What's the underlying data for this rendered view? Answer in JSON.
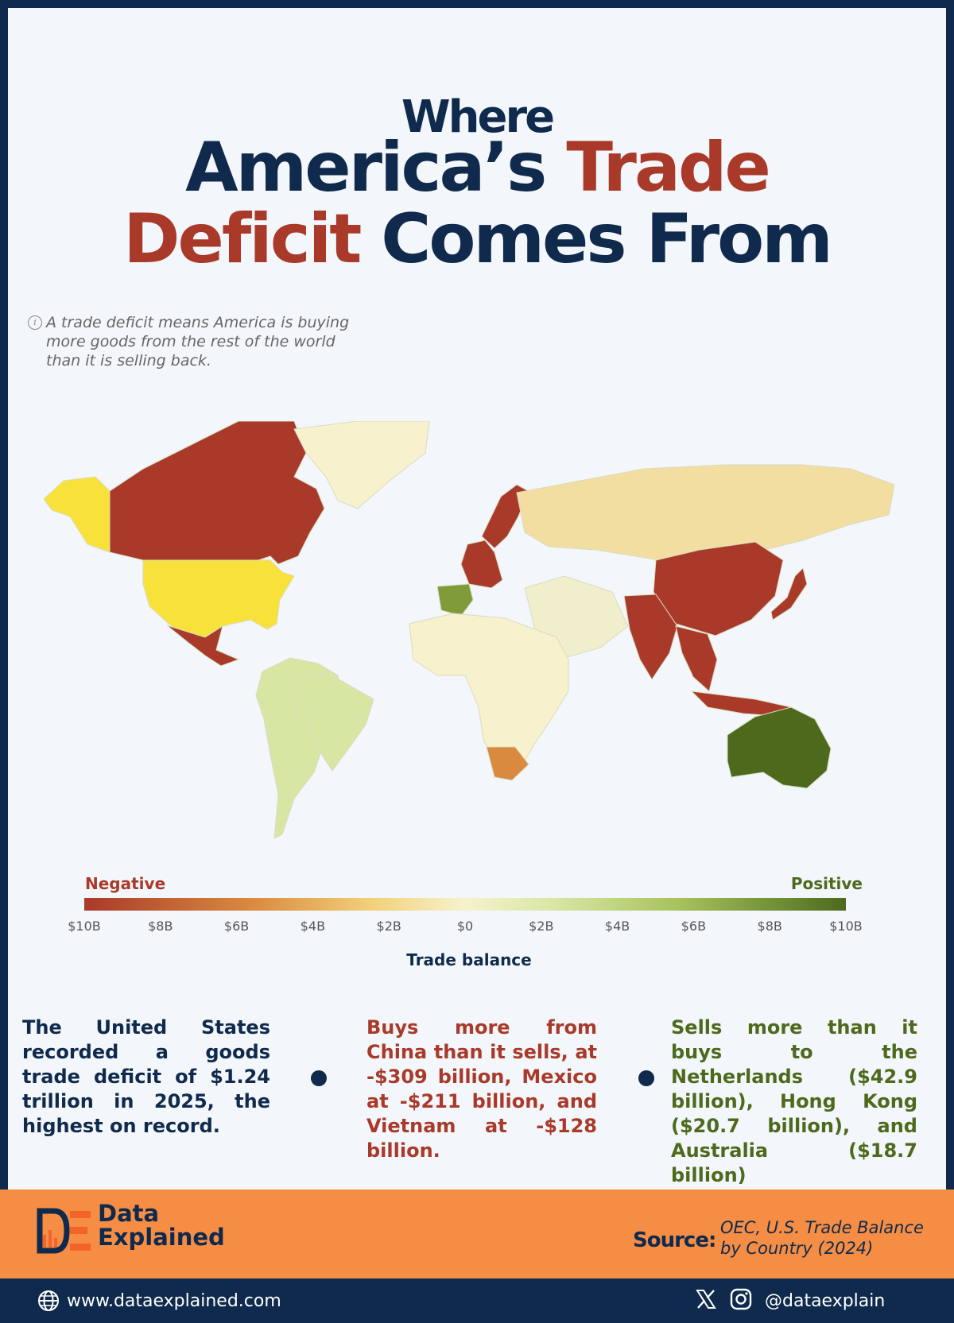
{
  "title": {
    "line1": "Where",
    "line2_a": "America’s ",
    "line2_b": "Trade",
    "line3_a": "Deficit",
    "line3_b": " Comes From"
  },
  "note": "A trade deficit means America is buying more goods from the rest of the world than it is selling back.",
  "legend": {
    "negative_label": "Negative",
    "positive_label": "Positive",
    "ticks": [
      "$10B",
      "$8B",
      "$6B",
      "$4B",
      "$2B",
      "$0",
      "$2B",
      "$4B",
      "$6B",
      "$8B",
      "$10B"
    ],
    "title": "Trade balance",
    "colors": [
      "#a93a2a",
      "#d98a3f",
      "#f2d27b",
      "#f7f2cd",
      "#d7e6a3",
      "#a7c25d",
      "#4d6a1c"
    ]
  },
  "map": {
    "regions": [
      {
        "name": "Canada",
        "balance_billion": -10,
        "color": "#a93a2a"
      },
      {
        "name": "United States",
        "balance_billion": null,
        "color": "#f8e23a"
      },
      {
        "name": "Alaska",
        "balance_billion": null,
        "color": "#f8e23a"
      },
      {
        "name": "Mexico",
        "balance_billion": -10,
        "color": "#a93a2a"
      },
      {
        "name": "Greenland",
        "balance_billion": 0,
        "color": "#f7f2cd"
      },
      {
        "name": "South America",
        "balance_billion": 2,
        "color": "#d7e6a3"
      },
      {
        "name": "Brazil",
        "balance_billion": 3,
        "color": "#d7e6a3"
      },
      {
        "name": "Scandinavia",
        "balance_billion": -10,
        "color": "#a93a2a"
      },
      {
        "name": "Western Europe",
        "balance_billion": -10,
        "color": "#a93a2a"
      },
      {
        "name": "Spain",
        "balance_billion": 6,
        "color": "#7f9b3a"
      },
      {
        "name": "Russia",
        "balance_billion": -3,
        "color": "#f2dea0"
      },
      {
        "name": "Middle East",
        "balance_billion": 0,
        "color": "#f1eecb"
      },
      {
        "name": "Africa",
        "balance_billion": 0,
        "color": "#f7f2cd"
      },
      {
        "name": "South Africa",
        "balance_billion": -7,
        "color": "#d98a3f"
      },
      {
        "name": "China",
        "balance_billion": -10,
        "color": "#a93a2a"
      },
      {
        "name": "India",
        "balance_billion": -10,
        "color": "#a93a2a"
      },
      {
        "name": "Japan",
        "balance_billion": -10,
        "color": "#a93a2a"
      },
      {
        "name": "Southeast Asia",
        "balance_billion": -10,
        "color": "#a93a2a"
      },
      {
        "name": "Indonesia",
        "balance_billion": -10,
        "color": "#a93a2a"
      },
      {
        "name": "Australia",
        "balance_billion": 10,
        "color": "#4d6a1c"
      }
    ]
  },
  "facts": {
    "left": "The United States recorded a goods trade deficit of $1.24 trillion in 2025, the highest on record.",
    "middle": "Buys more from China than it sells, at -$309 billion, Mexico at -$211 billion, and Vietnam at -$128 billion.",
    "right": "Sells more than it buys to the Netherlands ($42.9 billion), Hong Kong ($20.7 billion), and Australia ($18.7 billion)"
  },
  "footer": {
    "brand_line1": "Data",
    "brand_line2": "Explained",
    "source_label": "Source:",
    "source_text": "OEC, U.S. Trade Balance by Country (2024)",
    "website": "www.dataexplained.com",
    "handle": "@dataexplain"
  }
}
